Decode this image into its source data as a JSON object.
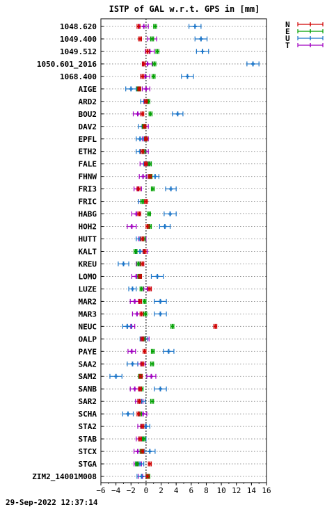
{
  "chart_data": {
    "type": "errorbar",
    "title": "ISTP of GAL w.r.t. GPS in [mm]",
    "footer": "29-Sep-2022 12:37:14",
    "xlim": [
      -6,
      16
    ],
    "x_ticks": [
      "-6",
      "-4",
      "-2",
      "0",
      "2",
      "4",
      "6",
      "8",
      "10",
      "12",
      "14",
      "16"
    ],
    "legend": [
      {
        "name": "N",
        "color": "#d00000"
      },
      {
        "name": "E",
        "color": "#00a000"
      },
      {
        "name": "U",
        "color": "#1a74c8"
      },
      {
        "name": "T",
        "color": "#a000c0"
      }
    ],
    "categories": [
      "1048.620",
      "1049.400",
      "1049.512",
      "1050.601_2016",
      "1068.400",
      "AIGE",
      "ARD2",
      "BOU2",
      "DAV2",
      "EPFL",
      "ETH2",
      "FALE",
      "FHNW",
      "FRI3",
      "FRIC",
      "HABG",
      "HOH2",
      "HUTT",
      "KALT",
      "KREU",
      "LOMO",
      "LUZE",
      "MAR2",
      "MAR3",
      "NEUC",
      "OALP",
      "PAYE",
      "SAA2",
      "SAM2",
      "SANB",
      "SAR2",
      "SCHA",
      "STA2",
      "STAB",
      "STCX",
      "STGA",
      "ZIM2_14001M008"
    ],
    "series": [
      {
        "name": "N",
        "values": [
          -1.0,
          -0.8,
          0.2,
          -0.3,
          -0.5,
          -0.9,
          0.0,
          -0.5,
          -0.2,
          0.0,
          -0.5,
          0.0,
          0.5,
          -1.0,
          0.0,
          -0.9,
          0.2,
          -0.5,
          -0.2,
          -0.5,
          -0.8,
          0.5,
          -0.8,
          -0.6,
          9.2,
          -0.5,
          -0.2,
          -0.5,
          -0.7,
          -0.8,
          -0.9,
          -1.0,
          -0.5,
          -0.8,
          -0.5,
          0.5,
          0.2
        ],
        "errors": [
          0.2,
          0.2,
          0.2,
          0.2,
          0.2,
          0.2,
          0.2,
          0.2,
          0.2,
          0.2,
          0.2,
          0.2,
          0.2,
          0.2,
          0.2,
          0.2,
          0.2,
          0.2,
          0.2,
          0.2,
          0.2,
          0.2,
          0.2,
          0.2,
          0.2,
          0.2,
          0.2,
          0.2,
          0.2,
          0.2,
          0.2,
          0.2,
          0.2,
          0.2,
          0.2,
          0.2,
          0.2
        ]
      },
      {
        "name": "E",
        "values": [
          1.2,
          0.8,
          1.5,
          1.1,
          1.0,
          -1.0,
          0.3,
          0.6,
          -0.3,
          0.0,
          -0.3,
          0.5,
          0.6,
          0.9,
          -0.5,
          0.4,
          0.5,
          -0.3,
          -1.4,
          -1.0,
          -0.9,
          -0.6,
          -0.2,
          -0.1,
          3.5,
          -0.3,
          0.9,
          0.8,
          -0.8,
          -0.6,
          0.8,
          -0.8,
          -0.5,
          -0.3,
          -0.6,
          -1.2,
          0.3
        ],
        "errors": [
          0.2,
          0.2,
          0.2,
          0.2,
          0.2,
          0.2,
          0.2,
          0.2,
          0.2,
          0.2,
          0.2,
          0.2,
          0.2,
          0.2,
          0.2,
          0.2,
          0.2,
          0.2,
          0.2,
          0.2,
          0.2,
          0.2,
          0.2,
          0.2,
          0.2,
          0.2,
          0.2,
          0.2,
          0.2,
          0.2,
          0.2,
          0.2,
          0.2,
          0.2,
          0.2,
          0.2,
          0.2
        ]
      },
      {
        "name": "U",
        "values": [
          6.5,
          7.3,
          7.5,
          14.2,
          5.5,
          -2.0,
          -0.2,
          4.2,
          -0.5,
          -0.8,
          -0.8,
          0.2,
          1.2,
          3.3,
          -0.5,
          3.2,
          2.5,
          -0.8,
          -0.8,
          -3.0,
          1.5,
          -1.8,
          1.9,
          1.9,
          -2.5,
          -0.3,
          3.0,
          -1.8,
          -4.0,
          1.9,
          -0.6,
          -2.4,
          0.0,
          -0.5,
          0.5,
          -0.8,
          -0.6
        ],
        "errors": [
          0.8,
          0.8,
          0.8,
          0.8,
          0.8,
          0.7,
          0.5,
          0.7,
          0.5,
          0.5,
          0.5,
          0.5,
          0.5,
          0.7,
          0.5,
          0.8,
          0.7,
          0.5,
          0.5,
          0.7,
          0.8,
          0.5,
          0.8,
          0.8,
          0.6,
          0.5,
          0.7,
          0.7,
          0.8,
          0.8,
          0.5,
          0.7,
          0.5,
          0.5,
          0.7,
          0.5,
          0.6
        ]
      },
      {
        "name": "T",
        "values": [
          -0.3,
          0.8,
          0.5,
          0.2,
          -0.1,
          0.0,
          0.1,
          -1.1,
          -0.1,
          -0.1,
          -0.1,
          -0.2,
          -0.4,
          -1.1,
          -0.5,
          -1.3,
          -1.9,
          -0.5,
          -0.3,
          -0.8,
          -1.3,
          0.2,
          -1.5,
          -1.2,
          -2.0,
          -0.1,
          -1.9,
          -0.6,
          0.7,
          -1.5,
          -0.9,
          -0.4,
          -0.6,
          -0.8,
          -1.1,
          -1.1,
          -0.5
        ],
        "errors": [
          0.6,
          0.6,
          0.6,
          0.6,
          0.6,
          0.5,
          0.4,
          0.6,
          0.4,
          0.4,
          0.4,
          0.6,
          0.5,
          0.5,
          0.5,
          0.6,
          0.6,
          0.5,
          0.5,
          0.5,
          0.6,
          0.5,
          0.6,
          0.6,
          0.5,
          0.5,
          0.5,
          0.5,
          0.6,
          0.6,
          0.5,
          0.5,
          0.5,
          0.5,
          0.5,
          0.5,
          0.5
        ]
      }
    ],
    "grid": "horizontal-dotted",
    "zero_line": "dotted",
    "legend_position": "top-right"
  }
}
